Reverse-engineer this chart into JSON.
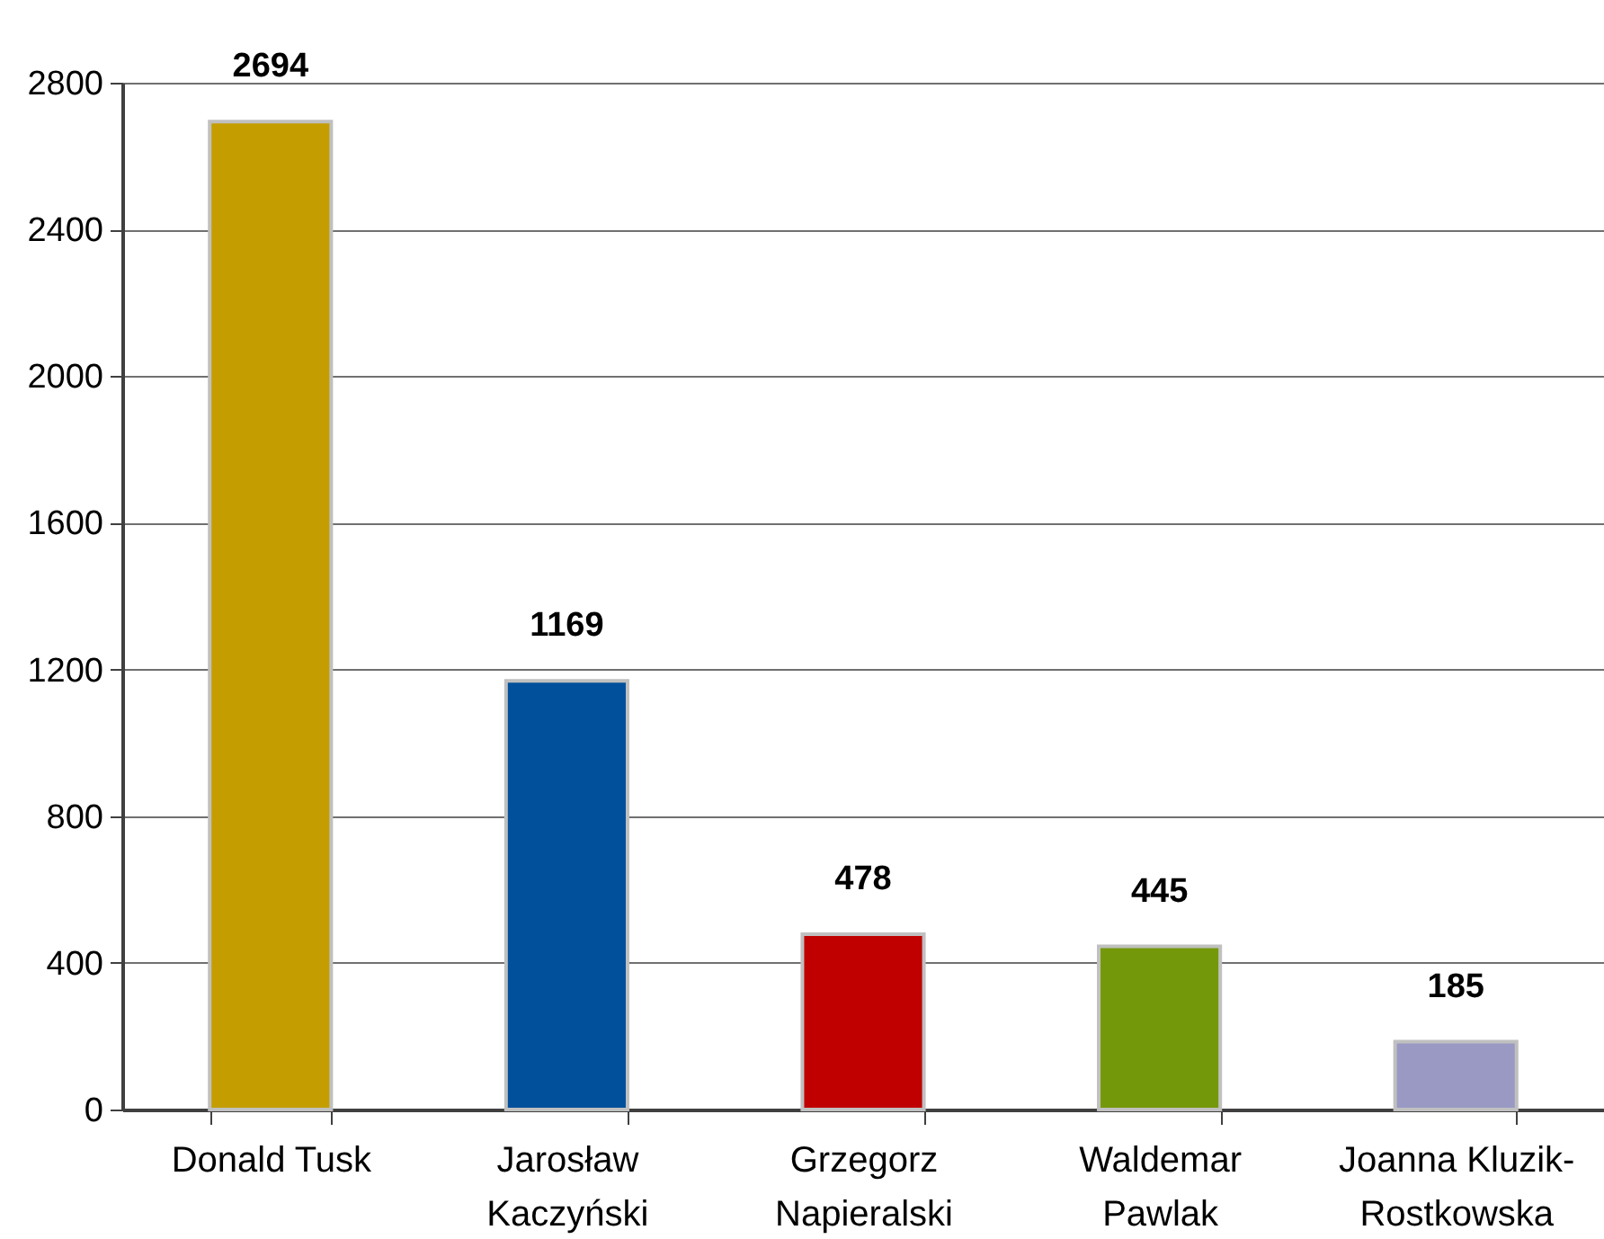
{
  "chart_data": {
    "type": "bar",
    "categories": [
      "Donald Tusk",
      "Jarosław Kaczyński",
      "Grzegorz Napieralski",
      "Waldemar Pawlak",
      "Joanna Kluzik-Rostkowska"
    ],
    "values": [
      2694,
      1169,
      478,
      445,
      185
    ],
    "colors": [
      "#c49e00",
      "#00509c",
      "#c00000",
      "#73990a",
      "#9999c4"
    ],
    "ylim": [
      0,
      2800
    ],
    "yticks": [
      0,
      400,
      800,
      1200,
      1600,
      2000,
      2400,
      2800
    ],
    "grid": "y",
    "data_labels": true
  }
}
